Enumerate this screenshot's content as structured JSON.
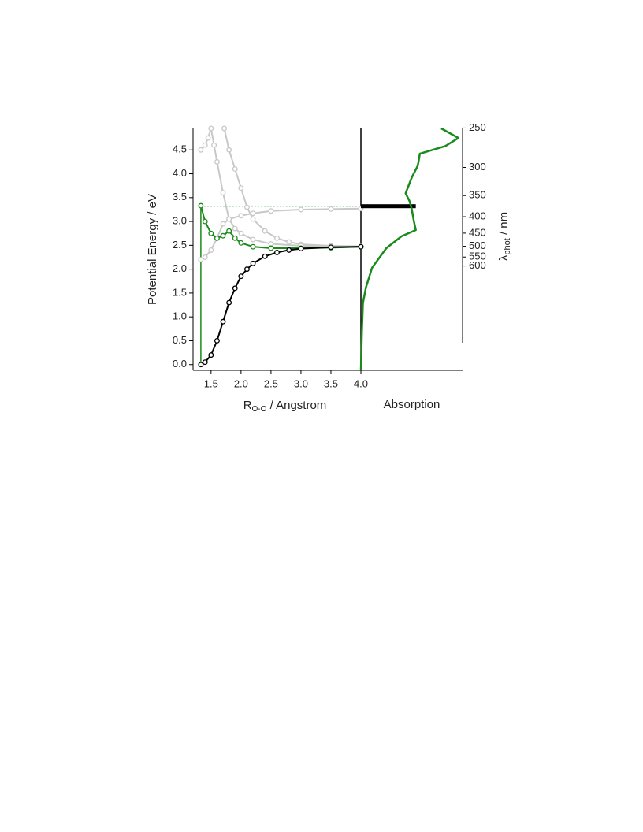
{
  "chart_data": [
    {
      "type": "line",
      "x_label": {
        "main": "R",
        "sub": "O-O",
        "rest": " / Angstrom"
      },
      "y_label": "Potential Energy / eV",
      "xlim": [
        1.2,
        4.0
      ],
      "ylim": [
        -0.12,
        4.95
      ],
      "xticks": [
        {
          "value": 1.5,
          "label": "1.5"
        },
        {
          "value": 2,
          "label": "2.0"
        },
        {
          "value": 2.5,
          "label": "2.5"
        },
        {
          "value": 3,
          "label": "3.0"
        },
        {
          "value": 3.5,
          "label": "3.5"
        },
        {
          "value": 4,
          "label": "4.0"
        }
      ],
      "yticks": [
        {
          "value": 0,
          "label": "0.0"
        },
        0.5,
        {
          "value": 1,
          "label": "1.0"
        },
        1.5,
        {
          "value": 2,
          "label": "2.0"
        },
        2.5,
        {
          "value": 3,
          "label": "3.0"
        },
        3.5,
        {
          "value": 4,
          "label": "4.0"
        },
        4.5
      ],
      "marker": "open-circle",
      "series": [
        {
          "color": "#c8c8c8",
          "x": [
            1.72,
            1.8,
            1.9,
            2.0,
            2.1,
            2.2,
            2.4,
            2.6,
            2.8,
            3.0,
            3.5,
            4.0
          ],
          "values": [
            4.95,
            4.5,
            4.1,
            3.7,
            3.3,
            3.05,
            2.8,
            2.65,
            2.57,
            2.52,
            2.49,
            2.48
          ]
        },
        {
          "color": "#c8c8c8",
          "x": [
            1.33,
            1.4,
            1.5,
            1.6,
            1.7,
            1.8,
            2.0,
            2.2,
            2.5,
            3.0,
            3.5,
            4.0
          ],
          "values": [
            2.2,
            2.25,
            2.4,
            2.65,
            2.95,
            3.05,
            3.12,
            3.17,
            3.22,
            3.25,
            3.26,
            3.27
          ]
        },
        {
          "color": "#c8c8c8",
          "x": [
            1.33,
            1.4,
            1.45,
            1.5,
            1.55,
            1.6,
            1.7,
            1.8,
            1.9,
            2.0,
            2.2,
            2.5,
            3.0,
            3.5,
            4.0
          ],
          "values": [
            4.5,
            4.6,
            4.75,
            4.95,
            4.6,
            4.25,
            3.6,
            3.05,
            2.85,
            2.75,
            2.62,
            2.53,
            2.49,
            2.48,
            2.47
          ]
        },
        {
          "color": "#1a8a1a",
          "x": [
            1.33,
            1.4,
            1.5,
            1.6,
            1.7,
            1.8,
            1.9,
            2.0,
            2.2,
            2.5,
            3.0,
            3.5,
            4.0
          ],
          "values": [
            3.33,
            3.0,
            2.75,
            2.65,
            2.7,
            2.8,
            2.65,
            2.55,
            2.47,
            2.44,
            2.44,
            2.45,
            2.47
          ]
        },
        {
          "color": "#000000",
          "x": [
            1.33,
            1.4,
            1.5,
            1.6,
            1.7,
            1.8,
            1.9,
            2.0,
            2.1,
            2.2,
            2.4,
            2.6,
            2.8,
            3.0,
            3.5,
            4.0
          ],
          "values": [
            0,
            0.05,
            0.2,
            0.5,
            0.9,
            1.3,
            1.6,
            1.85,
            2.0,
            2.12,
            2.27,
            2.35,
            2.4,
            2.43,
            2.46,
            2.47
          ]
        }
      ],
      "excitation": {
        "x": 1.33,
        "energy": 3.32,
        "color": "#1a8a1a"
      }
    },
    {
      "type": "spectrum",
      "x_label": "Absorption",
      "y2_label": {
        "main": "λ",
        "sub": "phot",
        "rest": " / nm"
      },
      "xlim": [
        0,
        1
      ],
      "ylim": [
        -0.12,
        4.95
      ],
      "y2ticks": [
        250,
        300,
        350,
        400,
        450,
        500,
        550,
        600
      ],
      "color": "#1a8a1a",
      "energy": [
        4.95,
        4.75,
        4.58,
        4.42,
        4.17,
        3.92,
        3.59,
        3.42,
        3.26,
        3.02,
        2.82,
        2.69,
        2.44,
        2.03,
        1.62,
        1.29,
        0.71,
        -0.12
      ],
      "values": [
        0.79,
        0.96,
        0.83,
        0.58,
        0.56,
        0.5,
        0.44,
        0.48,
        0.5,
        0.52,
        0.54,
        0.4,
        0.25,
        0.11,
        0.05,
        0.02,
        0.01,
        0
      ],
      "excitation_bar": {
        "energy": 3.32,
        "value": 0.54,
        "color": "#000000"
      }
    }
  ]
}
